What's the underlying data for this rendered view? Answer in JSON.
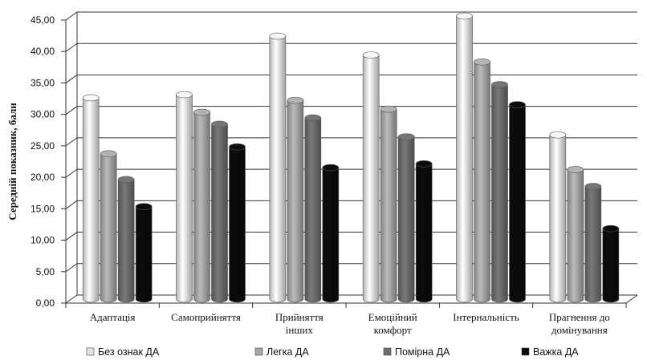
{
  "chart_data": {
    "type": "bar",
    "title": "",
    "xlabel": "",
    "ylabel": "Середній показник, бали",
    "ylim": [
      0,
      45
    ],
    "yticks": [
      "0,00",
      "5,00",
      "10,00",
      "15,00",
      "20,00",
      "25,00",
      "30,00",
      "35,00",
      "40,00",
      "45,00"
    ],
    "grid": true,
    "legend_position": "bottom",
    "categories": [
      [
        "Адаптація"
      ],
      [
        "Самоприйняття"
      ],
      [
        "Прийняття",
        "інших"
      ],
      [
        "Емоційний",
        "комфорт"
      ],
      [
        "Інтернальність"
      ],
      [
        "Прагнення до",
        "домінування"
      ]
    ],
    "series": [
      {
        "name": "Без ознак ДА",
        "color": "#e4e4e4",
        "values": [
          32.0,
          32.5,
          41.8,
          38.8,
          45.0,
          26.1
        ]
      },
      {
        "name": "Легка ДА",
        "color": "#a7a7a7",
        "values": [
          23.1,
          29.7,
          31.6,
          30.2,
          37.7,
          20.6
        ]
      },
      {
        "name": "Помірна ДА",
        "color": "#6c6c6c",
        "values": [
          19.0,
          27.8,
          28.8,
          25.8,
          34.1,
          17.9
        ]
      },
      {
        "name": "Важка ДА",
        "color": "#0b0b0b",
        "values": [
          14.7,
          24.2,
          20.9,
          21.5,
          30.9,
          11.2
        ]
      }
    ]
  }
}
